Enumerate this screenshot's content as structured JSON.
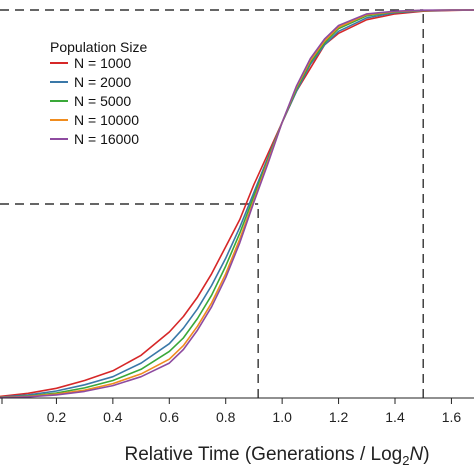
{
  "chart_data": {
    "type": "line",
    "xlabel_prefix": "Relative Time (Generations / Log",
    "xlabel_sub": "2",
    "xlabel_var": "N",
    "xlabel_suffix": ")",
    "ylabel": "",
    "xlim": [
      0.0,
      1.68
    ],
    "ylim": [
      0.0,
      1.0
    ],
    "grid": false,
    "legend": {
      "title": "Population Size",
      "placement": "top-left"
    },
    "x_ticks": [
      {
        "value": 0.2,
        "label": "0.2"
      },
      {
        "value": 0.4,
        "label": "0.4"
      },
      {
        "value": 0.6,
        "label": "0.6"
      },
      {
        "value": 0.8,
        "label": "0.8"
      },
      {
        "value": 1.0,
        "label": "1.0"
      },
      {
        "value": 1.2,
        "label": "1.2"
      },
      {
        "value": 1.4,
        "label": "1.4"
      },
      {
        "value": 1.6,
        "label": "1.6"
      }
    ],
    "reference_lines": [
      {
        "name": "ref-horizontal-top",
        "orientation": "horizontal",
        "y": 1.0,
        "x_from": 0.0,
        "x_to": 1.5
      },
      {
        "name": "ref-vertical-right",
        "orientation": "vertical",
        "x": 1.5,
        "y_from": 0.0,
        "y_to": 1.0
      },
      {
        "name": "ref-horizontal-mid",
        "orientation": "horizontal",
        "y": 0.5,
        "x_from": 0.0,
        "x_to": 0.915
      },
      {
        "name": "ref-vertical-mid",
        "orientation": "vertical",
        "x": 0.915,
        "y_from": 0.0,
        "y_to": 0.5
      }
    ],
    "x": [
      0.0,
      0.1,
      0.2,
      0.3,
      0.4,
      0.5,
      0.6,
      0.65,
      0.7,
      0.75,
      0.8,
      0.85,
      0.9,
      0.95,
      1.0,
      1.05,
      1.1,
      1.15,
      1.2,
      1.3,
      1.4,
      1.5,
      1.6,
      1.68
    ],
    "series": [
      {
        "name": "N = 1000",
        "color": "#d62728",
        "values": [
          0.004,
          0.012,
          0.025,
          0.045,
          0.07,
          0.11,
          0.17,
          0.21,
          0.26,
          0.32,
          0.39,
          0.46,
          0.55,
          0.63,
          0.71,
          0.79,
          0.85,
          0.91,
          0.94,
          0.975,
          0.99,
          0.997,
          0.999,
          1.0
        ]
      },
      {
        "name": "N = 2000",
        "color": "#3a78a8",
        "values": [
          0.002,
          0.008,
          0.018,
          0.034,
          0.055,
          0.09,
          0.14,
          0.18,
          0.23,
          0.29,
          0.36,
          0.44,
          0.53,
          0.62,
          0.71,
          0.79,
          0.86,
          0.91,
          0.945,
          0.98,
          0.993,
          0.998,
          0.9995,
          1.0
        ]
      },
      {
        "name": "N = 5000",
        "color": "#3aa839",
        "values": [
          0.001,
          0.005,
          0.013,
          0.026,
          0.045,
          0.074,
          0.12,
          0.155,
          0.205,
          0.265,
          0.34,
          0.425,
          0.52,
          0.615,
          0.71,
          0.795,
          0.865,
          0.915,
          0.952,
          0.985,
          0.995,
          0.999,
          1.0,
          1.0
        ]
      },
      {
        "name": "N = 10000",
        "color": "#f08c1e",
        "values": [
          0.001,
          0.004,
          0.01,
          0.02,
          0.037,
          0.062,
          0.1,
          0.135,
          0.185,
          0.245,
          0.32,
          0.41,
          0.51,
          0.61,
          0.71,
          0.8,
          0.87,
          0.92,
          0.956,
          0.988,
          0.996,
          0.999,
          1.0,
          1.0
        ]
      },
      {
        "name": "N = 16000",
        "color": "#8e4ba0",
        "values": [
          0.0005,
          0.003,
          0.008,
          0.017,
          0.032,
          0.055,
          0.09,
          0.125,
          0.175,
          0.235,
          0.31,
          0.4,
          0.505,
          0.605,
          0.71,
          0.803,
          0.875,
          0.925,
          0.96,
          0.99,
          0.997,
          0.9995,
          1.0,
          1.0
        ]
      }
    ]
  }
}
